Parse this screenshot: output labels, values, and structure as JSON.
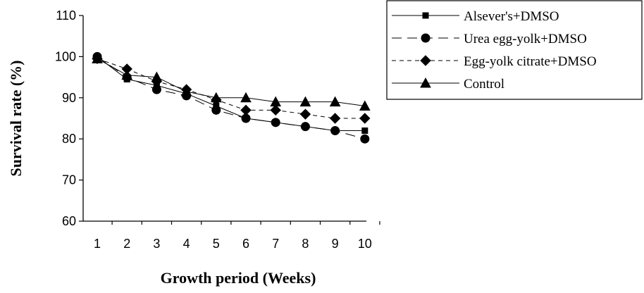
{
  "chart_data": {
    "type": "line",
    "title": "",
    "xlabel": "Growth period (Weeks)",
    "ylabel": "Survival rate (%)",
    "x": [
      1,
      2,
      3,
      4,
      5,
      6,
      7,
      8,
      9,
      10
    ],
    "ylim": [
      60,
      110
    ],
    "yticks": [
      60,
      70,
      80,
      90,
      100,
      110
    ],
    "xticks": [
      "1",
      "2",
      "3",
      "4",
      "5",
      "6",
      "7",
      "8",
      "9",
      "10"
    ],
    "grid": false,
    "legend_position": "top-right",
    "series": [
      {
        "name": "Alsever's+DMSO",
        "marker": "square",
        "dash": "solid",
        "values": [
          100,
          94.5,
          93,
          91,
          88,
          85,
          84,
          83,
          82,
          82
        ]
      },
      {
        "name": "Urea egg-yolk+DMSO",
        "marker": "circle",
        "dash": "long-dash",
        "values": [
          100,
          95,
          92,
          90.5,
          87,
          85,
          84,
          83,
          82,
          80
        ]
      },
      {
        "name": "Egg-yolk citrate+DMSO",
        "marker": "diamond",
        "dash": "short-dash",
        "values": [
          99.5,
          97,
          94,
          92,
          89.5,
          87,
          87,
          86,
          85,
          85
        ]
      },
      {
        "name": "Control",
        "marker": "triangle",
        "dash": "solid",
        "values": [
          99.5,
          95.5,
          95,
          91.5,
          90,
          90,
          89,
          89,
          89,
          88
        ]
      }
    ]
  }
}
